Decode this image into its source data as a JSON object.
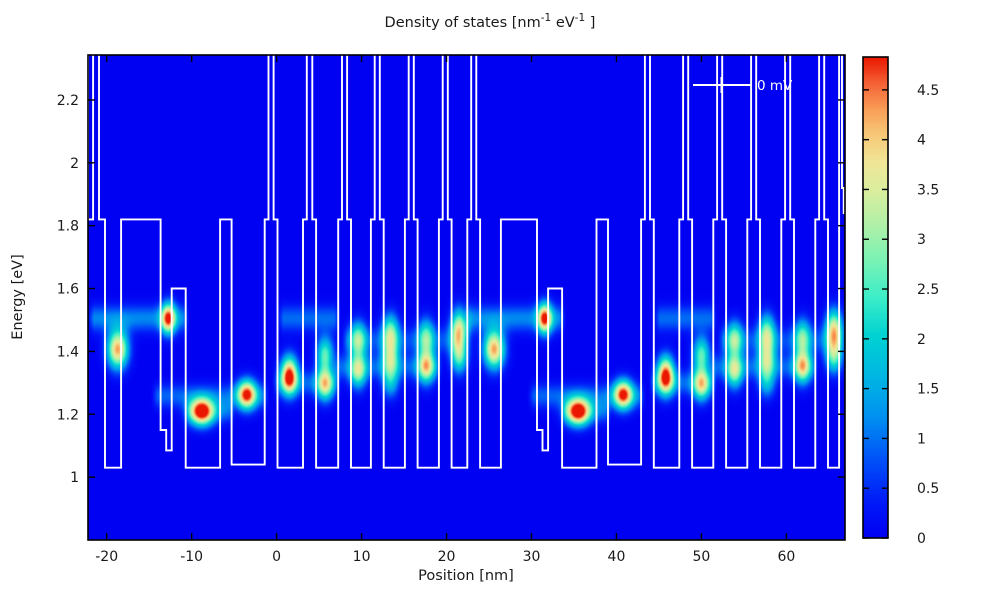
{
  "header": {
    "title": "Density of states [nm⁻¹ eV⁻¹]",
    "title_parts": {
      "p0": "Density of states [nm",
      "s0": "-1",
      "p1": " eV",
      "s1": "-1",
      "p2": " ]"
    }
  },
  "x_axis": {
    "label": "Position [nm]",
    "ticks": [
      -20,
      -10,
      0,
      10,
      20,
      30,
      40,
      50,
      60
    ]
  },
  "y_axis": {
    "label": "Energy [eV]",
    "ticks": [
      1,
      1.2,
      1.4,
      1.6,
      1.8,
      2,
      2.2
    ]
  },
  "colorbar": {
    "ticks": [
      0,
      0.5,
      1,
      1.5,
      2,
      2.5,
      3,
      3.5,
      4,
      4.5
    ]
  },
  "legend": {
    "label": "0 mV"
  },
  "colors": {
    "background": "#ffffff",
    "frame": "#000000",
    "band_line": "#ffffff",
    "text": "#1a1a1a",
    "plot_background": "#0000f2",
    "peak_max": "#ea1800"
  },
  "chart_data": {
    "type": "heatmap",
    "title": "Density of states [nm⁻¹ eV⁻¹]",
    "xlabel": "Position [nm]",
    "ylabel": "Energy [eV]",
    "x_range": [
      -22.2,
      66.9
    ],
    "y_range": [
      0.8,
      2.343
    ],
    "value_range": [
      0,
      4.83
    ],
    "grid": false,
    "legend_position": "top-right",
    "colormap": [
      [
        0.0,
        "#0000f2"
      ],
      [
        0.07,
        "#0018f8"
      ],
      [
        0.16,
        "#0050f8"
      ],
      [
        0.25,
        "#0090f0"
      ],
      [
        0.33,
        "#00b4e4"
      ],
      [
        0.42,
        "#00d2d2"
      ],
      [
        0.5,
        "#3ceec8"
      ],
      [
        0.58,
        "#7cf2b4"
      ],
      [
        0.65,
        "#aff0a8"
      ],
      [
        0.72,
        "#d8ee9e"
      ],
      [
        0.78,
        "#f0e698"
      ],
      [
        0.84,
        "#f6c877"
      ],
      [
        0.89,
        "#f89f58"
      ],
      [
        0.94,
        "#f5693a"
      ],
      [
        1.0,
        "#ea1800"
      ]
    ],
    "peaks_columns": [
      "position_nm",
      "energy_eV",
      "dos_value",
      "sigma_x_nm",
      "sigma_E_eV"
    ],
    "dos_peaks": [
      [
        -18.7,
        1.407,
        4.3,
        0.85,
        0.042
      ],
      [
        -12.75,
        1.505,
        4.1,
        0.6,
        0.034
      ],
      [
        -8.8,
        1.208,
        4.8,
        1.0,
        0.03
      ],
      [
        -3.5,
        1.263,
        4.35,
        0.8,
        0.032
      ],
      [
        1.5,
        1.306,
        3.0,
        0.7,
        0.036
      ],
      [
        1.5,
        1.344,
        2.5,
        0.7,
        0.036
      ],
      [
        5.7,
        1.295,
        3.2,
        0.7,
        0.036
      ],
      [
        5.7,
        1.39,
        2.6,
        0.7,
        0.04
      ],
      [
        9.6,
        1.337,
        2.8,
        0.7,
        0.038
      ],
      [
        9.6,
        1.438,
        2.6,
        0.7,
        0.04
      ],
      [
        13.4,
        1.3,
        1.6,
        0.7,
        0.034
      ],
      [
        13.4,
        1.381,
        2.7,
        0.7,
        0.04
      ],
      [
        13.4,
        1.464,
        2.6,
        0.7,
        0.04
      ],
      [
        17.6,
        1.353,
        3.4,
        0.7,
        0.038
      ],
      [
        17.6,
        1.448,
        2.3,
        0.7,
        0.04
      ],
      [
        21.5,
        1.384,
        2.5,
        0.7,
        0.038
      ],
      [
        21.5,
        1.47,
        3.6,
        0.7,
        0.044
      ],
      [
        25.6,
        1.407,
        4.3,
        0.85,
        0.042
      ],
      [
        31.55,
        1.505,
        4.1,
        0.6,
        0.034
      ],
      [
        35.5,
        1.208,
        4.8,
        1.0,
        0.03
      ],
      [
        40.8,
        1.263,
        4.35,
        0.8,
        0.032
      ],
      [
        45.8,
        1.306,
        3.0,
        0.7,
        0.036
      ],
      [
        45.8,
        1.344,
        2.5,
        0.7,
        0.036
      ],
      [
        50.0,
        1.295,
        3.2,
        0.7,
        0.036
      ],
      [
        50.0,
        1.39,
        2.6,
        0.7,
        0.04
      ],
      [
        53.9,
        1.337,
        2.8,
        0.7,
        0.038
      ],
      [
        53.9,
        1.438,
        2.6,
        0.7,
        0.04
      ],
      [
        57.7,
        1.3,
        1.6,
        0.7,
        0.034
      ],
      [
        57.7,
        1.381,
        2.7,
        0.7,
        0.04
      ],
      [
        57.7,
        1.464,
        2.6,
        0.7,
        0.04
      ],
      [
        61.9,
        1.353,
        3.4,
        0.7,
        0.038
      ],
      [
        61.9,
        1.448,
        2.3,
        0.7,
        0.04
      ],
      [
        65.6,
        1.384,
        2.5,
        0.7,
        0.038
      ],
      [
        65.6,
        1.47,
        3.6,
        0.7,
        0.044
      ]
    ],
    "bands_columns": [
      "energy_eV",
      "x_start_nm",
      "x_end_nm",
      "dos_value",
      "sigma_E_eV"
    ],
    "dos_bands": [
      [
        1.505,
        -22.3,
        -10.2,
        1.15,
        0.03
      ],
      [
        1.505,
        0.0,
        7.6,
        0.95,
        0.03
      ],
      [
        1.258,
        -14.8,
        -0.8,
        0.9,
        0.028
      ],
      [
        1.208,
        -11.0,
        -4.8,
        0.85,
        0.026
      ],
      [
        1.3,
        -0.5,
        7.5,
        0.9,
        0.028
      ],
      [
        1.35,
        6.5,
        19.5,
        0.85,
        0.028
      ],
      [
        1.435,
        7.5,
        22.0,
        0.7,
        0.03
      ],
      [
        1.505,
        22.0,
        34.1,
        1.15,
        0.03
      ],
      [
        1.505,
        44.3,
        51.9,
        0.95,
        0.03
      ],
      [
        1.258,
        29.5,
        43.5,
        0.9,
        0.028
      ],
      [
        1.208,
        33.3,
        39.5,
        0.85,
        0.026
      ],
      [
        1.3,
        43.8,
        51.8,
        0.9,
        0.028
      ],
      [
        1.35,
        50.8,
        63.8,
        0.85,
        0.028
      ],
      [
        1.435,
        51.8,
        66.9,
        0.7,
        0.03
      ]
    ],
    "band_profile_label": "0 mV",
    "band_profile_steps": [
      [
        -22.2,
        1.82
      ],
      [
        -21.6,
        2.45
      ],
      [
        -20.9,
        1.82
      ],
      [
        -20.2,
        1.03
      ],
      [
        -18.3,
        1.82
      ],
      [
        -13.65,
        1.15
      ],
      [
        -13.0,
        1.085
      ],
      [
        -12.35,
        1.6
      ],
      [
        -10.7,
        1.03
      ],
      [
        -6.65,
        1.82
      ],
      [
        -5.3,
        1.04
      ],
      [
        -1.4,
        1.82
      ],
      [
        -0.95,
        2.45
      ],
      [
        -0.35,
        1.82
      ],
      [
        0.1,
        1.03
      ],
      [
        3.1,
        1.82
      ],
      [
        3.55,
        2.45
      ],
      [
        4.2,
        1.82
      ],
      [
        4.65,
        1.03
      ],
      [
        7.25,
        1.82
      ],
      [
        7.7,
        2.45
      ],
      [
        8.3,
        1.82
      ],
      [
        8.75,
        1.03
      ],
      [
        11.1,
        1.82
      ],
      [
        11.55,
        2.45
      ],
      [
        12.15,
        1.82
      ],
      [
        12.6,
        1.03
      ],
      [
        15.1,
        1.82
      ],
      [
        15.55,
        2.45
      ],
      [
        16.15,
        1.82
      ],
      [
        16.6,
        1.03
      ],
      [
        19.1,
        1.82
      ],
      [
        19.55,
        2.45
      ],
      [
        20.15,
        1.82
      ],
      [
        20.6,
        1.03
      ],
      [
        22.45,
        1.82
      ],
      [
        22.9,
        2.45
      ],
      [
        23.5,
        1.82
      ],
      [
        23.95,
        1.03
      ],
      [
        26.4,
        1.82
      ],
      [
        30.65,
        1.15
      ],
      [
        31.3,
        1.085
      ],
      [
        31.95,
        1.6
      ],
      [
        33.6,
        1.03
      ],
      [
        37.65,
        1.82
      ],
      [
        39.0,
        1.04
      ],
      [
        42.9,
        1.82
      ],
      [
        43.35,
        2.45
      ],
      [
        43.95,
        1.82
      ],
      [
        44.4,
        1.03
      ],
      [
        47.4,
        1.82
      ],
      [
        47.85,
        2.45
      ],
      [
        48.45,
        1.82
      ],
      [
        48.9,
        1.03
      ],
      [
        51.4,
        1.82
      ],
      [
        51.85,
        2.45
      ],
      [
        52.45,
        1.82
      ],
      [
        52.9,
        1.03
      ],
      [
        55.4,
        1.82
      ],
      [
        55.85,
        2.45
      ],
      [
        56.45,
        1.82
      ],
      [
        56.9,
        1.03
      ],
      [
        59.4,
        1.82
      ],
      [
        59.85,
        2.45
      ],
      [
        60.45,
        1.82
      ],
      [
        60.9,
        1.03
      ],
      [
        63.4,
        1.82
      ],
      [
        63.85,
        2.45
      ],
      [
        64.45,
        1.82
      ],
      [
        64.9,
        1.03
      ],
      [
        66.2,
        2.45
      ],
      [
        66.55,
        1.92
      ],
      [
        66.75,
        1.84
      ]
    ]
  }
}
